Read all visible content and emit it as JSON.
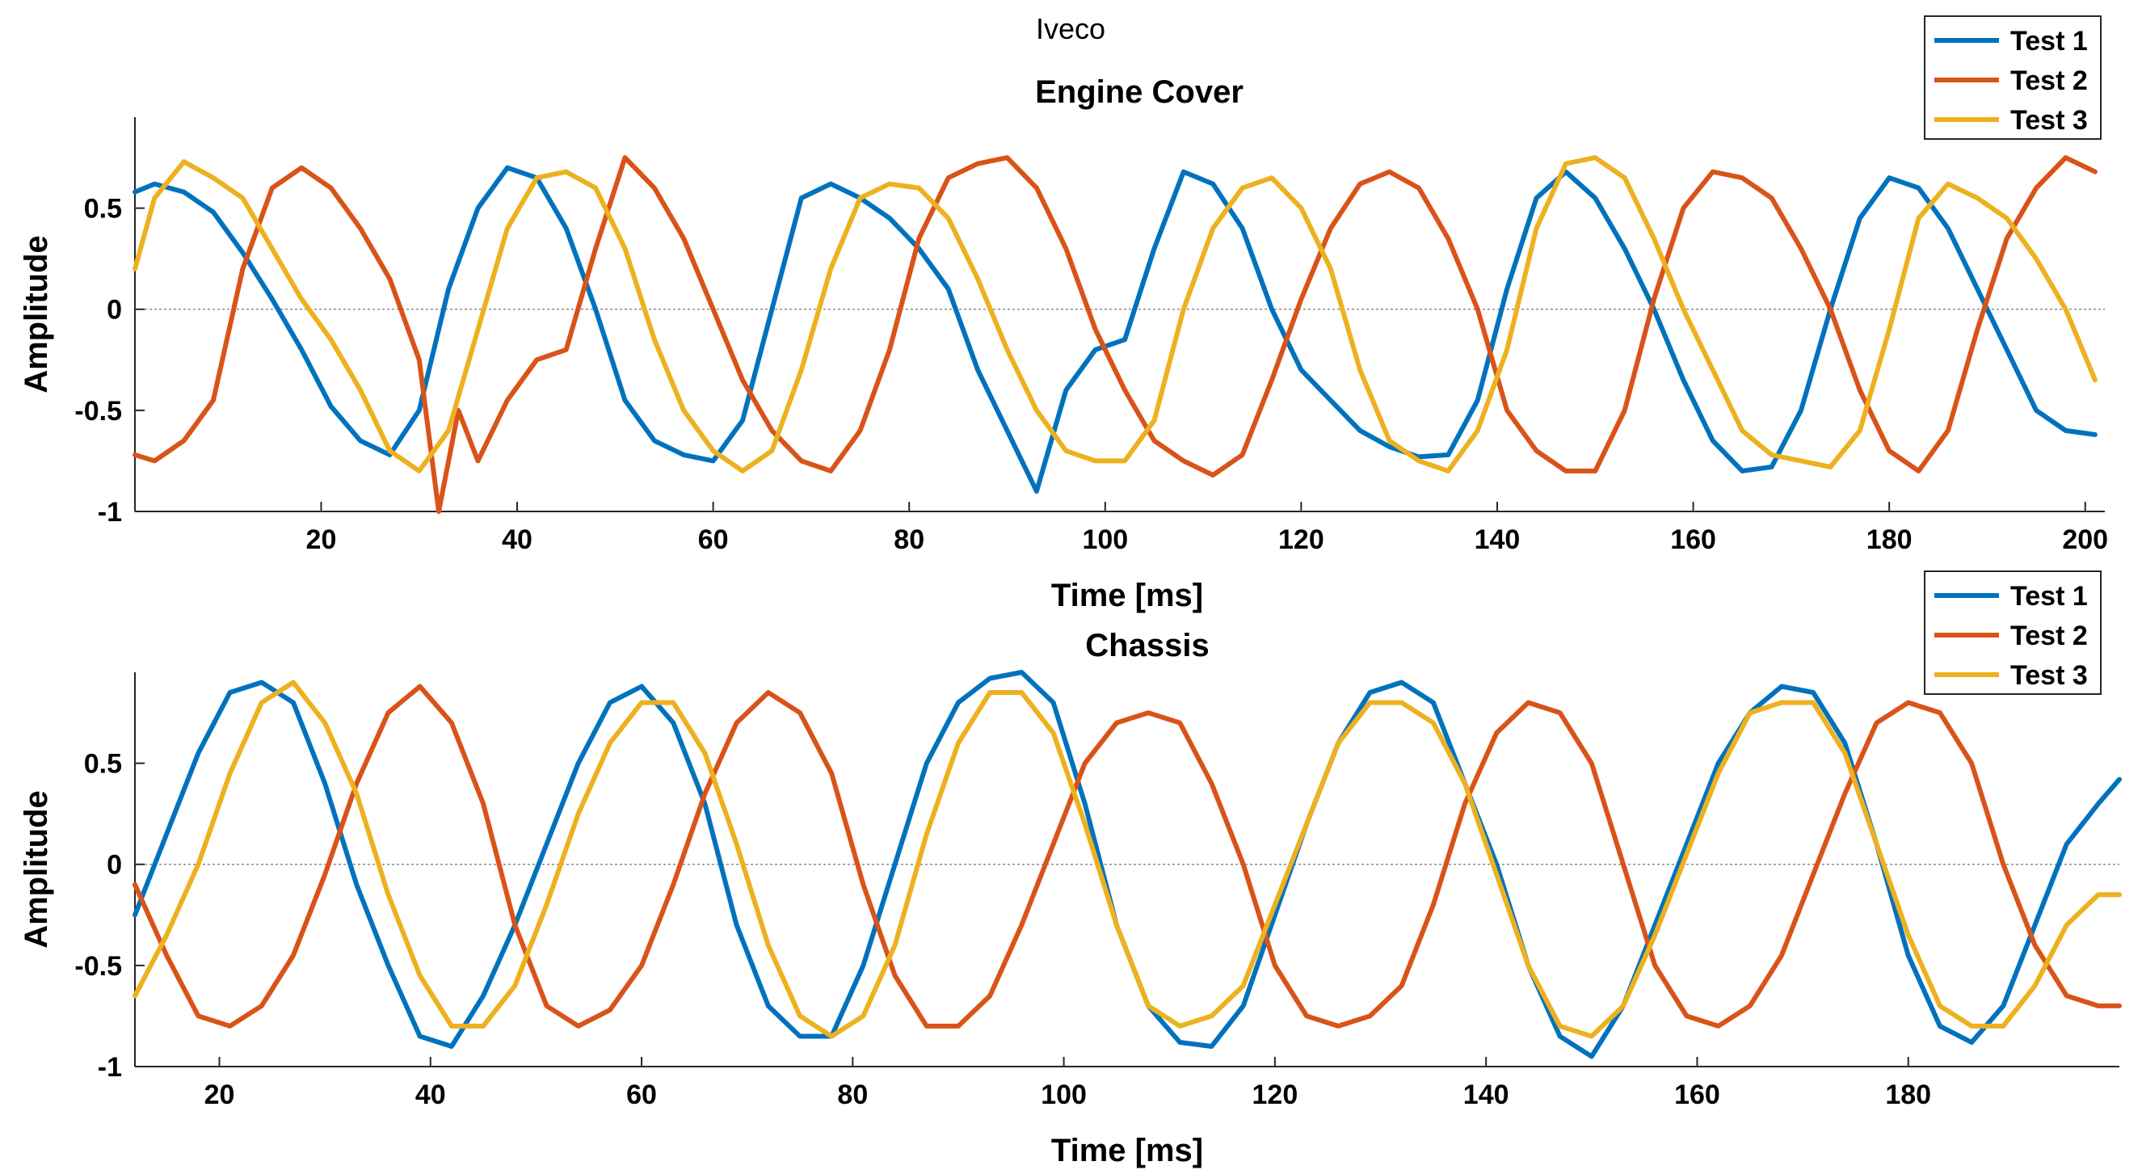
{
  "figure": {
    "suptitle": "Iveco"
  },
  "colors": {
    "test1": "#0072BD",
    "test2": "#D95319",
    "test3": "#EDB120"
  },
  "chart_data": [
    {
      "type": "line",
      "title": "Engine Cover",
      "xlabel": "Time [ms]",
      "ylabel": "Amplitude",
      "xlim": [
        1,
        202
      ],
      "ylim": [
        -1,
        0.95
      ],
      "xticks": [
        20,
        40,
        60,
        80,
        100,
        120,
        140,
        160,
        180,
        200
      ],
      "xtick_labels": [
        "20",
        "40",
        "60",
        "80",
        "100",
        "120",
        "140",
        "160",
        "180",
        "200"
      ],
      "yticks": [
        -1,
        -0.5,
        0,
        0.5
      ],
      "ytick_labels": [
        "-1",
        "-0.5",
        "0",
        "0.5"
      ],
      "legend": "top-right",
      "series": [
        {
          "name": "Test 1",
          "x": [
            1,
            3,
            6,
            9,
            12,
            15,
            18,
            21,
            24,
            27,
            30,
            33,
            36,
            39,
            42,
            45,
            48,
            51,
            54,
            57,
            60,
            63,
            66,
            69,
            72,
            75,
            78,
            81,
            84,
            87,
            90,
            93,
            96,
            99,
            102,
            105,
            108,
            111,
            114,
            117,
            120,
            123,
            126,
            129,
            132,
            135,
            138,
            141,
            144,
            147,
            150,
            153,
            156,
            159,
            162,
            165,
            168,
            171,
            174,
            177,
            180,
            183,
            186,
            189,
            192,
            195,
            198,
            201
          ],
          "y": [
            0.58,
            0.62,
            0.58,
            0.48,
            0.28,
            0.05,
            -0.2,
            -0.48,
            -0.65,
            -0.72,
            -0.5,
            0.1,
            0.5,
            0.7,
            0.65,
            0.4,
            0.0,
            -0.45,
            -0.65,
            -0.72,
            -0.75,
            -0.55,
            0.0,
            0.55,
            0.62,
            0.55,
            0.45,
            0.3,
            0.1,
            -0.3,
            -0.6,
            -0.9,
            -0.4,
            -0.2,
            -0.15,
            0.3,
            0.68,
            0.62,
            0.4,
            0.0,
            -0.3,
            -0.45,
            -0.6,
            -0.68,
            -0.73,
            -0.72,
            -0.45,
            0.1,
            0.55,
            0.68,
            0.55,
            0.3,
            0.0,
            -0.35,
            -0.65,
            -0.8,
            -0.78,
            -0.5,
            0.0,
            0.45,
            0.65,
            0.6,
            0.4,
            0.1,
            -0.2,
            -0.5,
            -0.6,
            -0.62
          ]
        },
        {
          "name": "Test 2",
          "x": [
            1,
            3,
            6,
            9,
            12,
            15,
            18,
            21,
            24,
            27,
            30,
            32,
            34,
            36,
            39,
            42,
            45,
            48,
            51,
            54,
            57,
            60,
            63,
            66,
            69,
            72,
            75,
            78,
            81,
            84,
            87,
            90,
            93,
            96,
            99,
            102,
            105,
            108,
            111,
            114,
            117,
            120,
            123,
            126,
            129,
            132,
            135,
            138,
            141,
            144,
            147,
            150,
            153,
            156,
            159,
            162,
            165,
            168,
            171,
            174,
            177,
            180,
            183,
            186,
            189,
            192,
            195,
            198,
            201
          ],
          "y": [
            -0.72,
            -0.75,
            -0.65,
            -0.45,
            0.2,
            0.6,
            0.7,
            0.6,
            0.4,
            0.15,
            -0.25,
            -1.0,
            -0.5,
            -0.75,
            -0.45,
            -0.25,
            -0.2,
            0.3,
            0.75,
            0.6,
            0.35,
            0.0,
            -0.35,
            -0.6,
            -0.75,
            -0.8,
            -0.6,
            -0.2,
            0.35,
            0.65,
            0.72,
            0.75,
            0.6,
            0.3,
            -0.1,
            -0.4,
            -0.65,
            -0.75,
            -0.82,
            -0.72,
            -0.35,
            0.05,
            0.4,
            0.62,
            0.68,
            0.6,
            0.35,
            0.0,
            -0.5,
            -0.7,
            -0.8,
            -0.8,
            -0.5,
            0.05,
            0.5,
            0.68,
            0.65,
            0.55,
            0.3,
            0.0,
            -0.4,
            -0.7,
            -0.8,
            -0.6,
            -0.1,
            0.35,
            0.6,
            0.75,
            0.68
          ]
        },
        {
          "name": "Test 3",
          "x": [
            1,
            3,
            6,
            9,
            12,
            15,
            18,
            21,
            24,
            27,
            30,
            33,
            36,
            39,
            42,
            45,
            48,
            51,
            54,
            57,
            60,
            63,
            66,
            69,
            72,
            75,
            78,
            81,
            84,
            87,
            90,
            93,
            96,
            99,
            102,
            105,
            108,
            111,
            114,
            117,
            120,
            123,
            126,
            129,
            132,
            135,
            138,
            141,
            144,
            147,
            150,
            153,
            156,
            159,
            162,
            165,
            168,
            171,
            174,
            177,
            180,
            183,
            186,
            189,
            192,
            195,
            198,
            201
          ],
          "y": [
            0.2,
            0.55,
            0.73,
            0.65,
            0.55,
            0.3,
            0.05,
            -0.15,
            -0.4,
            -0.7,
            -0.8,
            -0.6,
            -0.1,
            0.4,
            0.65,
            0.68,
            0.6,
            0.3,
            -0.15,
            -0.5,
            -0.7,
            -0.8,
            -0.7,
            -0.3,
            0.2,
            0.55,
            0.62,
            0.6,
            0.45,
            0.15,
            -0.2,
            -0.5,
            -0.7,
            -0.75,
            -0.75,
            -0.55,
            0.0,
            0.4,
            0.6,
            0.65,
            0.5,
            0.2,
            -0.3,
            -0.65,
            -0.75,
            -0.8,
            -0.6,
            -0.2,
            0.4,
            0.72,
            0.75,
            0.65,
            0.35,
            0.0,
            -0.3,
            -0.6,
            -0.72,
            -0.75,
            -0.78,
            -0.6,
            -0.1,
            0.45,
            0.62,
            0.55,
            0.45,
            0.25,
            0.0,
            -0.35
          ]
        }
      ]
    },
    {
      "type": "line",
      "title": "Chassis",
      "xlabel": "Time [ms]",
      "ylabel": "Amplitude",
      "xlim": [
        12,
        200
      ],
      "ylim": [
        -1,
        0.95
      ],
      "xticks": [
        20,
        40,
        60,
        80,
        100,
        120,
        140,
        160,
        180
      ],
      "xtick_labels": [
        "20",
        "40",
        "60",
        "80",
        "100",
        "120",
        "140",
        "160",
        "180"
      ],
      "yticks": [
        -1,
        -0.5,
        0,
        0.5
      ],
      "ytick_labels": [
        "-1",
        "-0.5",
        "0",
        "0.5"
      ],
      "legend": "top-right",
      "series": [
        {
          "name": "Test 1",
          "x": [
            12,
            15,
            18,
            21,
            24,
            27,
            30,
            33,
            36,
            39,
            42,
            45,
            48,
            51,
            54,
            57,
            60,
            63,
            66,
            69,
            72,
            75,
            78,
            81,
            84,
            87,
            90,
            93,
            96,
            99,
            102,
            105,
            108,
            111,
            114,
            117,
            120,
            123,
            126,
            129,
            132,
            135,
            138,
            141,
            144,
            147,
            150,
            153,
            156,
            159,
            162,
            165,
            168,
            171,
            174,
            177,
            180,
            183,
            186,
            189,
            192,
            195,
            198,
            200
          ],
          "y": [
            -0.25,
            0.15,
            0.55,
            0.85,
            0.9,
            0.8,
            0.4,
            -0.1,
            -0.5,
            -0.85,
            -0.9,
            -0.65,
            -0.3,
            0.1,
            0.5,
            0.8,
            0.88,
            0.7,
            0.3,
            -0.3,
            -0.7,
            -0.85,
            -0.85,
            -0.5,
            0.0,
            0.5,
            0.8,
            0.92,
            0.95,
            0.8,
            0.3,
            -0.3,
            -0.7,
            -0.88,
            -0.9,
            -0.7,
            -0.25,
            0.2,
            0.6,
            0.85,
            0.9,
            0.8,
            0.4,
            0.0,
            -0.5,
            -0.85,
            -0.95,
            -0.7,
            -0.3,
            0.1,
            0.5,
            0.75,
            0.88,
            0.85,
            0.6,
            0.1,
            -0.45,
            -0.8,
            -0.88,
            -0.7,
            -0.3,
            0.1,
            0.3,
            0.42
          ]
        },
        {
          "name": "Test 2",
          "x": [
            12,
            15,
            18,
            21,
            24,
            27,
            30,
            33,
            36,
            39,
            42,
            45,
            48,
            51,
            54,
            57,
            60,
            63,
            66,
            69,
            72,
            75,
            78,
            81,
            84,
            87,
            90,
            93,
            96,
            99,
            102,
            105,
            108,
            111,
            114,
            117,
            120,
            123,
            126,
            129,
            132,
            135,
            138,
            141,
            144,
            147,
            150,
            153,
            156,
            159,
            162,
            165,
            168,
            171,
            174,
            177,
            180,
            183,
            186,
            189,
            192,
            195,
            198,
            200
          ],
          "y": [
            -0.1,
            -0.45,
            -0.75,
            -0.8,
            -0.7,
            -0.45,
            -0.05,
            0.4,
            0.75,
            0.88,
            0.7,
            0.3,
            -0.3,
            -0.7,
            -0.8,
            -0.72,
            -0.5,
            -0.1,
            0.35,
            0.7,
            0.85,
            0.75,
            0.45,
            -0.1,
            -0.55,
            -0.8,
            -0.8,
            -0.65,
            -0.3,
            0.1,
            0.5,
            0.7,
            0.75,
            0.7,
            0.4,
            0.0,
            -0.5,
            -0.75,
            -0.8,
            -0.75,
            -0.6,
            -0.2,
            0.3,
            0.65,
            0.8,
            0.75,
            0.5,
            0.0,
            -0.5,
            -0.75,
            -0.8,
            -0.7,
            -0.45,
            -0.05,
            0.35,
            0.7,
            0.8,
            0.75,
            0.5,
            0.0,
            -0.4,
            -0.65,
            -0.7,
            -0.7
          ]
        },
        {
          "name": "Test 3",
          "x": [
            12,
            15,
            18,
            21,
            24,
            27,
            30,
            33,
            36,
            39,
            42,
            45,
            48,
            51,
            54,
            57,
            60,
            63,
            66,
            69,
            72,
            75,
            78,
            81,
            84,
            87,
            90,
            93,
            96,
            99,
            102,
            105,
            108,
            111,
            114,
            117,
            120,
            123,
            126,
            129,
            132,
            135,
            138,
            141,
            144,
            147,
            150,
            153,
            156,
            159,
            162,
            165,
            168,
            171,
            174,
            177,
            180,
            183,
            186,
            189,
            192,
            195,
            198,
            200
          ],
          "y": [
            -0.65,
            -0.35,
            0.0,
            0.45,
            0.8,
            0.9,
            0.7,
            0.35,
            -0.15,
            -0.55,
            -0.8,
            -0.8,
            -0.6,
            -0.2,
            0.25,
            0.6,
            0.8,
            0.8,
            0.55,
            0.1,
            -0.4,
            -0.75,
            -0.85,
            -0.75,
            -0.4,
            0.15,
            0.6,
            0.85,
            0.85,
            0.65,
            0.2,
            -0.3,
            -0.7,
            -0.8,
            -0.75,
            -0.6,
            -0.2,
            0.2,
            0.6,
            0.8,
            0.8,
            0.7,
            0.4,
            -0.05,
            -0.5,
            -0.8,
            -0.85,
            -0.7,
            -0.35,
            0.05,
            0.45,
            0.75,
            0.8,
            0.8,
            0.55,
            0.1,
            -0.35,
            -0.7,
            -0.8,
            -0.8,
            -0.6,
            -0.3,
            -0.15,
            -0.15
          ]
        }
      ]
    }
  ]
}
